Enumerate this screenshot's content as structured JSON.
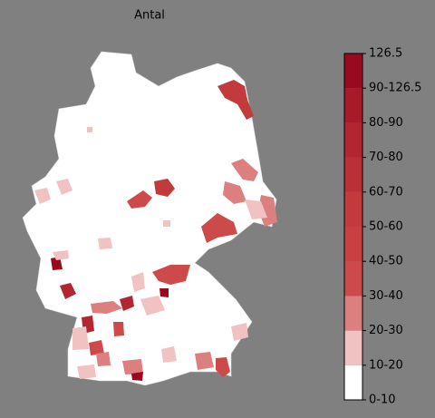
{
  "title": "Antal",
  "legend": {
    "labels": [
      "0-10",
      "10-20",
      "20-30",
      "30-40",
      "40-50",
      "50-60",
      "60-70",
      "70-80",
      "80-90",
      "90-126.5",
      "126.5"
    ],
    "colors": [
      "#ffffff",
      "#f0c2c2",
      "#db7f7f",
      "#cd4a4a",
      "#c84040",
      "#c23a3c",
      "#bb3036",
      "#b32530",
      "#a81a28",
      "#9a0a1e"
    ]
  }
}
